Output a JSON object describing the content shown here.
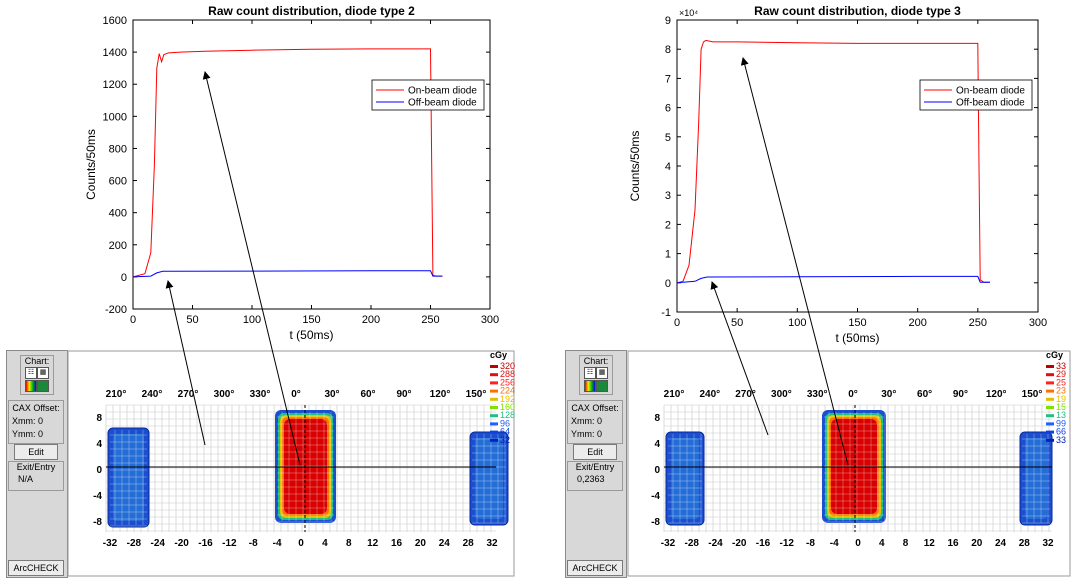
{
  "chart_data": [
    {
      "type": "line",
      "title": "Raw count distribution, diode type 2",
      "xlabel": "t (50ms)",
      "ylabel": "Counts/50ms",
      "xlim": [
        0,
        300
      ],
      "ylim": [
        -200,
        1600
      ],
      "xticks": [
        "0",
        "50",
        "100",
        "150",
        "200",
        "250",
        "300"
      ],
      "yticks": [
        "-200",
        "0",
        "200",
        "400",
        "600",
        "800",
        "1000",
        "1200",
        "1400",
        "1600"
      ],
      "grid": false,
      "legend_position": "top-right",
      "series": [
        {
          "name": "On-beam diode",
          "color": "#ff0000",
          "x": [
            0,
            10,
            15,
            18,
            20,
            22,
            24,
            26,
            28,
            30,
            40,
            60,
            100,
            150,
            200,
            250,
            251,
            252,
            255,
            260
          ],
          "y": [
            0,
            20,
            150,
            700,
            1300,
            1390,
            1340,
            1385,
            1390,
            1395,
            1400,
            1405,
            1412,
            1418,
            1420,
            1420,
            700,
            10,
            5,
            5
          ]
        },
        {
          "name": "Off-beam diode",
          "color": "#0000ff",
          "x": [
            0,
            15,
            20,
            25,
            100,
            200,
            250,
            252,
            260
          ],
          "y": [
            0,
            5,
            25,
            35,
            36,
            38,
            38,
            5,
            5
          ]
        }
      ]
    },
    {
      "type": "line",
      "title": "Raw count distribution, diode type 3",
      "exponent_label": "×10⁴",
      "xlabel": "t (50ms)",
      "ylabel": "Counts/50ms",
      "xlim": [
        0,
        300
      ],
      "ylim": [
        -1,
        9
      ],
      "xticks": [
        "0",
        "50",
        "100",
        "150",
        "200",
        "250",
        "300"
      ],
      "yticks": [
        "-1",
        "0",
        "1",
        "2",
        "3",
        "4",
        "5",
        "6",
        "7",
        "8",
        "9"
      ],
      "grid": false,
      "legend_position": "top-right",
      "series": [
        {
          "name": "On-beam diode",
          "color": "#ff0000",
          "x": [
            0,
            5,
            10,
            15,
            18,
            20,
            22,
            24,
            30,
            50,
            100,
            150,
            200,
            250,
            251,
            252,
            255,
            260
          ],
          "y": [
            0,
            0.05,
            0.6,
            2.5,
            5.5,
            8.0,
            8.25,
            8.3,
            8.25,
            8.25,
            8.22,
            8.2,
            8.2,
            8.2,
            4.0,
            0.1,
            0.02,
            0.02
          ]
        },
        {
          "name": "Off-beam diode",
          "color": "#0000ff",
          "x": [
            0,
            15,
            20,
            25,
            100,
            200,
            250,
            252,
            260
          ],
          "y": [
            0,
            0.05,
            0.15,
            0.2,
            0.21,
            0.22,
            0.22,
            0.02,
            0.02
          ]
        }
      ]
    }
  ],
  "arccheck": [
    {
      "sidebar": {
        "chart_label": "Chart:",
        "cax_label": "CAX Offset:",
        "xmm": "Xmm: 0",
        "ymm": "Ymm: 0",
        "edit": "Edit",
        "exit_entry_label": "Exit/Entry",
        "exit_entry_value": "N/A",
        "app": "ArcCHECK"
      },
      "angles": [
        "210°",
        "240°",
        "270°",
        "300°",
        "330°",
        "0°",
        "30°",
        "60°",
        "90°",
        "120°",
        "150°"
      ],
      "xticks": [
        "-32",
        "-28",
        "-24",
        "-20",
        "-16",
        "-12",
        "-8",
        "-4",
        "0",
        "4",
        "8",
        "12",
        "16",
        "20",
        "24",
        "28",
        "32"
      ],
      "yticks": [
        "8",
        "4",
        "0",
        "-4",
        "-8"
      ],
      "unit": "cGy",
      "legend": [
        {
          "label": "320",
          "color": "#c00000"
        },
        {
          "label": "288",
          "color": "#e01010"
        },
        {
          "label": "256",
          "color": "#ff2020"
        },
        {
          "label": "224",
          "color": "#ff7000"
        },
        {
          "label": "192",
          "color": "#e0c000"
        },
        {
          "label": "160",
          "color": "#80e000"
        },
        {
          "label": "128",
          "color": "#20c080"
        },
        {
          "label": "96",
          "color": "#2060ff"
        },
        {
          "label": "64",
          "color": "#1040e0"
        },
        {
          "label": "32",
          "color": "#0020c0"
        }
      ]
    },
    {
      "sidebar": {
        "chart_label": "Chart:",
        "cax_label": "CAX Offset:",
        "xmm": "Xmm: 0",
        "ymm": "Ymm: 0",
        "edit": "Edit",
        "exit_entry_label": "Exit/Entry",
        "exit_entry_value": "0,2363",
        "app": "ArcCHECK"
      },
      "angles": [
        "210°",
        "240°",
        "270°",
        "300°",
        "330°",
        "0°",
        "30°",
        "60°",
        "90°",
        "120°",
        "150°"
      ],
      "xticks": [
        "-32",
        "-28",
        "-24",
        "-20",
        "-16",
        "-12",
        "-8",
        "-4",
        "0",
        "4",
        "8",
        "12",
        "16",
        "20",
        "24",
        "28",
        "32"
      ],
      "yticks": [
        "8",
        "4",
        "0",
        "-4",
        "-8"
      ],
      "unit": "cGy",
      "legend": [
        {
          "label": "33",
          "color": "#c00000"
        },
        {
          "label": "29",
          "color": "#e01010"
        },
        {
          "label": "25",
          "color": "#ff2020"
        },
        {
          "label": "23",
          "color": "#ff7000"
        },
        {
          "label": "19",
          "color": "#e0c000"
        },
        {
          "label": "15",
          "color": "#80e000"
        },
        {
          "label": "13",
          "color": "#20c080"
        },
        {
          "label": "99",
          "color": "#2060ff"
        },
        {
          "label": "66",
          "color": "#1040e0"
        },
        {
          "label": "33",
          "color": "#0020c0"
        }
      ]
    }
  ]
}
